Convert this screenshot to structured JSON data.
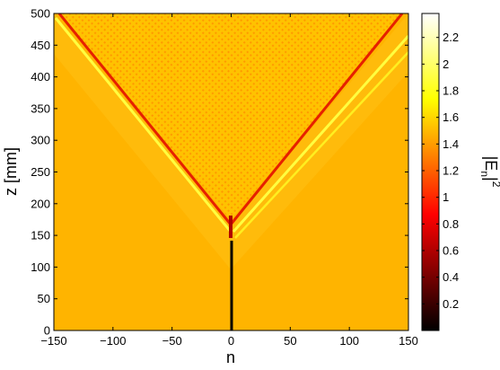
{
  "chart_data": {
    "type": "heatmap",
    "title": "",
    "xlabel": "n",
    "ylabel": "z [mm]",
    "xlim": [
      -150,
      150
    ],
    "ylim": [
      0,
      500
    ],
    "xticks": [
      -150,
      -100,
      -50,
      0,
      50,
      100,
      150
    ],
    "yticks": [
      0,
      50,
      100,
      150,
      200,
      250,
      300,
      350,
      400,
      450,
      500
    ],
    "colorbar": {
      "label_main": "|E",
      "label_sub": "n",
      "label_sup": "2",
      "label_end": "|",
      "range": [
        0,
        2.38
      ],
      "ticks": [
        0.2,
        0.4,
        0.6,
        0.8,
        1,
        1.2,
        1.4,
        1.6,
        1.8,
        2,
        2.2
      ],
      "colormap": "hot",
      "position": "right"
    },
    "features": {
      "background_intensity": 1.5,
      "input_waveguide": {
        "n": 0,
        "z_range": [
          0,
          140
        ],
        "intensity": 0.05
      },
      "split_point_z": 140,
      "left_cone_edge": {
        "from": [
          0,
          150
        ],
        "to": [
          -150,
          500
        ],
        "peak_intensity": 2.0
      },
      "right_cone_edge": {
        "from": [
          0,
          150
        ],
        "to": [
          150,
          500
        ],
        "peak_intensity": 2.2
      },
      "interior_pattern": "interference"
    }
  }
}
